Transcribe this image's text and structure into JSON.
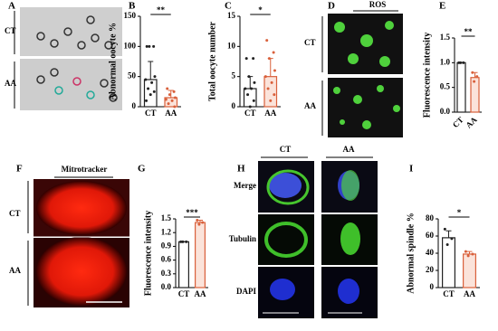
{
  "panels": {
    "letters": [
      "A",
      "B",
      "C",
      "D",
      "E",
      "F",
      "G",
      "H",
      "I"
    ],
    "a_groups": [
      "CT",
      "AA"
    ],
    "d_title": "ROS",
    "d_groups": [
      "CT",
      "AA"
    ],
    "f_title": "Mitrotracker",
    "f_groups": [
      "CT",
      "AA"
    ],
    "h_columns": [
      "CT",
      "AA"
    ],
    "h_rows": [
      "Merge",
      "Tubulin",
      "DAPI"
    ]
  },
  "chart_data": [
    {
      "type": "bar",
      "ylabel": "Abnormal oocyte %",
      "categories": [
        "CT",
        "AA"
      ],
      "values": [
        45,
        15
      ],
      "errors": [
        30,
        12
      ],
      "colors": [
        "#222222",
        "#d9603b"
      ],
      "points": [
        [
          100,
          100,
          100,
          50,
          45,
          40,
          30,
          25,
          20,
          10
        ],
        [
          30,
          25,
          20,
          15,
          12,
          10,
          5,
          0
        ]
      ],
      "ylim": [
        0,
        150
      ],
      "yticks": [
        0,
        50,
        100,
        150
      ],
      "significance": "**"
    },
    {
      "type": "bar",
      "ylabel": "Total oocyte number",
      "categories": [
        "CT",
        "AA"
      ],
      "values": [
        3,
        5
      ],
      "errors": [
        2,
        3
      ],
      "colors": [
        "#222222",
        "#d9603b"
      ],
      "points": [
        [
          8,
          8,
          5,
          4,
          3,
          3,
          2,
          1,
          0
        ],
        [
          11,
          9,
          8,
          6,
          5,
          4,
          3,
          2,
          1
        ]
      ],
      "ylim": [
        0,
        15
      ],
      "yticks": [
        0,
        5,
        10,
        15
      ],
      "significance": "*"
    },
    {
      "type": "bar",
      "ylabel": "Fluorescence intensity",
      "categories": [
        "CT",
        "AA"
      ],
      "values": [
        1.0,
        0.7
      ],
      "errors": [
        0,
        0.1
      ],
      "colors": [
        "#222222",
        "#d9603b"
      ],
      "points": [
        [
          1.0,
          1.0,
          1.0
        ],
        [
          0.8,
          0.72,
          0.62
        ]
      ],
      "ylim": [
        0,
        1.5
      ],
      "yticks": [
        {
          "value": 0,
          "label": "0.0"
        },
        0.5,
        {
          "value": 1,
          "label": "1.0"
        },
        1.5
      ],
      "significance": "**"
    },
    {
      "type": "bar",
      "ylabel": "Fluorescence intensity",
      "categories": [
        "CT",
        "AA"
      ],
      "values": [
        1.0,
        1.42
      ],
      "errors": [
        0,
        0.05
      ],
      "colors": [
        "#222222",
        "#d9603b"
      ],
      "points": [
        [
          1.0,
          1.0,
          1.0
        ],
        [
          1.47,
          1.42,
          1.38
        ]
      ],
      "ylim": [
        0,
        1.5
      ],
      "yticks": [
        {
          "value": 0,
          "label": "0.0"
        },
        0.3,
        0.6,
        0.9,
        1.2,
        1.5
      ],
      "significance": "***"
    },
    {
      "type": "bar",
      "ylabel": "Abnormal spindle %",
      "categories": [
        "CT",
        "AA"
      ],
      "values": [
        58,
        39
      ],
      "errors": [
        8,
        3
      ],
      "colors": [
        "#222222",
        "#d9603b"
      ],
      "points": [
        [
          68,
          57,
          50
        ],
        [
          42,
          39,
          37
        ]
      ],
      "ylim": [
        0,
        80
      ],
      "yticks": [
        0,
        20,
        40,
        60,
        80
      ],
      "significance": "*"
    }
  ]
}
